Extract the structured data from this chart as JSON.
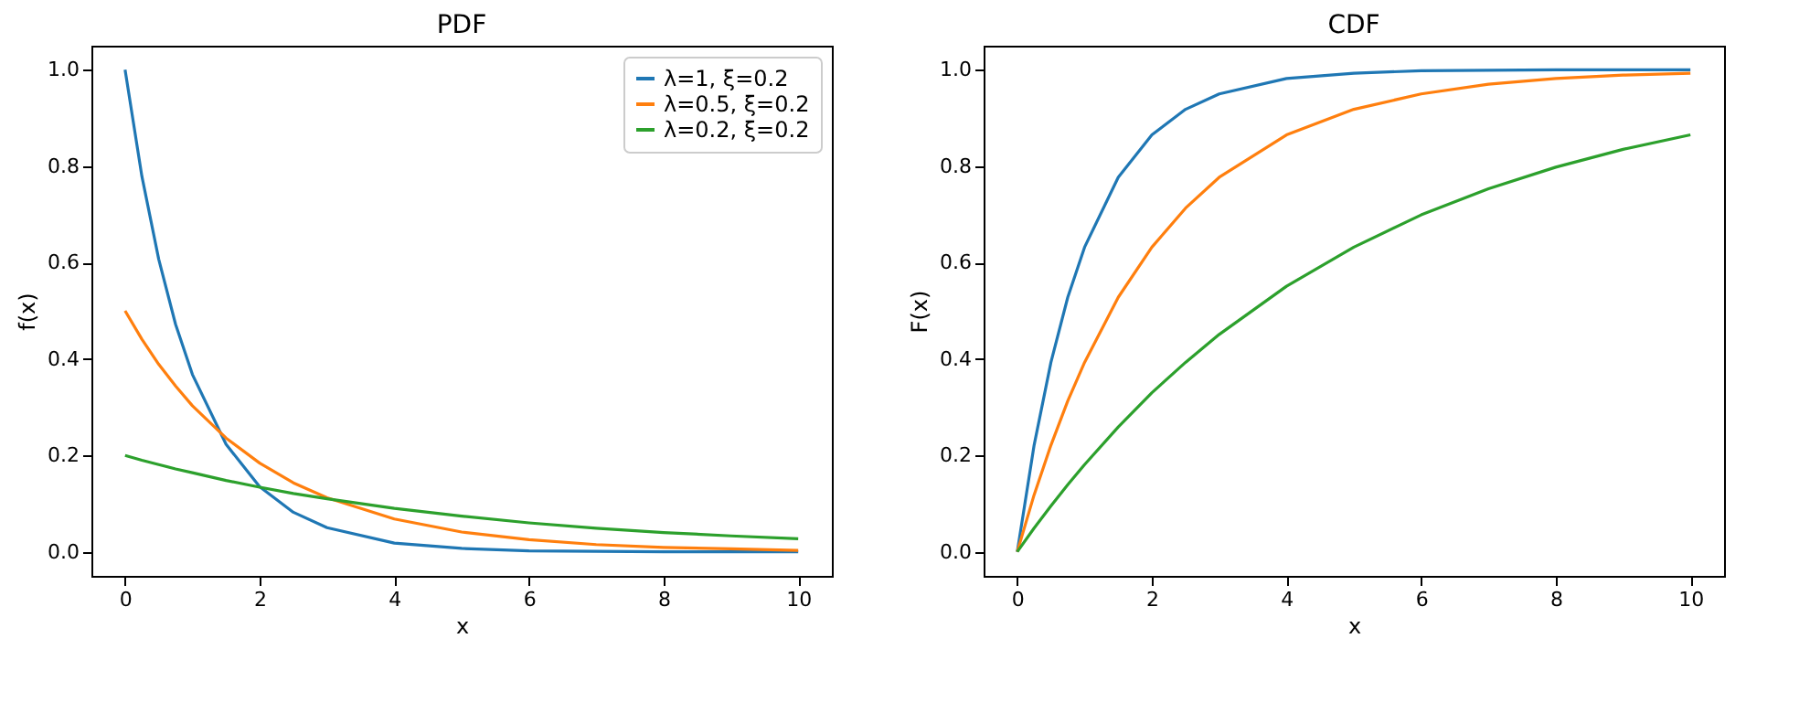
{
  "chart_data": [
    {
      "type": "line",
      "title": "PDF",
      "xlabel": "x",
      "ylabel": "f(x)",
      "x": [
        0,
        0.25,
        0.5,
        0.75,
        1,
        1.5,
        2,
        2.5,
        3,
        4,
        5,
        6,
        7,
        8,
        9,
        10
      ],
      "xlim": [
        -0.5,
        10.5
      ],
      "xticks": [
        0,
        2,
        4,
        6,
        8,
        10
      ],
      "ylim": [
        -0.05,
        1.05
      ],
      "yticks": [
        {
          "value": 0,
          "label": "0.0"
        },
        {
          "value": 0.2,
          "label": "0.2"
        },
        {
          "value": 0.4,
          "label": "0.4"
        },
        {
          "value": 0.6,
          "label": "0.6"
        },
        {
          "value": 0.8,
          "label": "0.8"
        },
        {
          "value": 1,
          "label": "1.0"
        }
      ],
      "grid": false,
      "legend": "top right",
      "marker": "none",
      "line_style": "solid",
      "series": [
        {
          "name": "λ=1, ξ=0.2",
          "color": "#1f77b4",
          "values": [
            1,
            0.779,
            0.607,
            0.472,
            0.368,
            0.223,
            0.135,
            0.082,
            0.05,
            0.018,
            0.007,
            0.002,
            0.001,
            0,
            0,
            0
          ]
        },
        {
          "name": "λ=0.5, ξ=0.2",
          "color": "#ff7f0e",
          "values": [
            0.5,
            0.441,
            0.389,
            0.344,
            0.303,
            0.236,
            0.184,
            0.143,
            0.112,
            0.068,
            0.041,
            0.025,
            0.015,
            0.009,
            0.006,
            0.003
          ]
        },
        {
          "name": "λ=0.2, ξ=0.2",
          "color": "#2ca02c",
          "values": [
            0.2,
            0.19,
            0.181,
            0.172,
            0.164,
            0.148,
            0.134,
            0.121,
            0.11,
            0.09,
            0.074,
            0.06,
            0.049,
            0.04,
            0.033,
            0.027
          ]
        }
      ]
    },
    {
      "type": "line",
      "title": "CDF",
      "xlabel": "x",
      "ylabel": "F(x)",
      "x": [
        0,
        0.25,
        0.5,
        0.75,
        1,
        1.5,
        2,
        2.5,
        3,
        4,
        5,
        6,
        7,
        8,
        9,
        10
      ],
      "xlim": [
        -0.5,
        10.5
      ],
      "xticks": [
        0,
        2,
        4,
        6,
        8,
        10
      ],
      "ylim": [
        -0.05,
        1.05
      ],
      "yticks": [
        {
          "value": 0,
          "label": "0.0"
        },
        {
          "value": 0.2,
          "label": "0.2"
        },
        {
          "value": 0.4,
          "label": "0.4"
        },
        {
          "value": 0.6,
          "label": "0.6"
        },
        {
          "value": 0.8,
          "label": "0.8"
        },
        {
          "value": 1,
          "label": "1.0"
        }
      ],
      "grid": false,
      "legend": false,
      "marker": "none",
      "line_style": "solid",
      "series": [
        {
          "color": "#1f77b4",
          "values": [
            0,
            0.221,
            0.393,
            0.528,
            0.632,
            0.777,
            0.865,
            0.918,
            0.95,
            0.982,
            0.993,
            0.998,
            0.999,
            1,
            1,
            1
          ]
        },
        {
          "color": "#ff7f0e",
          "values": [
            0,
            0.118,
            0.221,
            0.313,
            0.393,
            0.528,
            0.632,
            0.713,
            0.777,
            0.865,
            0.918,
            0.95,
            0.97,
            0.982,
            0.989,
            0.993
          ]
        },
        {
          "color": "#2ca02c",
          "values": [
            0,
            0.049,
            0.095,
            0.139,
            0.181,
            0.259,
            0.33,
            0.393,
            0.451,
            0.551,
            0.632,
            0.699,
            0.753,
            0.798,
            0.835,
            0.865
          ]
        }
      ]
    }
  ]
}
